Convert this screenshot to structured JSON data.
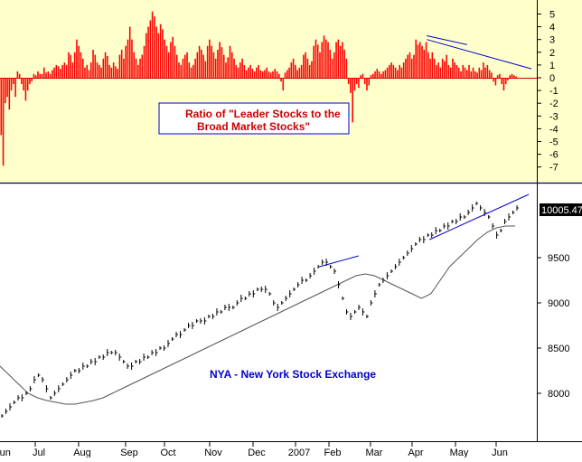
{
  "colors": {
    "top_panel_bg": "#ffffcc",
    "bottom_panel_bg": "#ffffff",
    "bars": "#ff0000",
    "trend_lines": "#0000cc",
    "price": "#000000",
    "moving_average": "#555555",
    "annotation_text": "#0000cc",
    "ratio_box_text": "#cc0000",
    "ratio_box_border": "#0000cc",
    "separator": "#000066",
    "last_value_bg": "#000000",
    "last_value_text": "#ffffff"
  },
  "chart_data": [
    {
      "type": "bar",
      "panel": "top",
      "annotation": "Ratio of  \"Leader Stocks to the Broad Market Stocks\"",
      "annotation_lines": [
        "Ratio of  \"Leader Stocks to the",
        "Broad Market Stocks\""
      ],
      "y_ticks": [
        5,
        4,
        3,
        2,
        1,
        0,
        -1,
        -2,
        -3,
        -4,
        -5,
        -6,
        -7
      ],
      "ylim": [
        -8,
        5.5
      ],
      "values": [
        -4.5,
        -6.9,
        -2.0,
        -1.5,
        -2.5,
        -1.0,
        -0.5,
        -1.5,
        0.5,
        0.3,
        -0.5,
        -1.0,
        -1.8,
        -1.0,
        -0.5,
        -0.3,
        0.3,
        0.2,
        0.5,
        0.3,
        0.3,
        0.8,
        0.4,
        0.5,
        0.3,
        0.6,
        0.8,
        1.0,
        0.9,
        0.7,
        1.0,
        1.2,
        1.0,
        2.0,
        1.8,
        1.2,
        2.0,
        3.0,
        2.5,
        2.0,
        1.5,
        0.8,
        1.0,
        0.6,
        1.2,
        2.2,
        1.8,
        1.2,
        1.0,
        0.8,
        1.5,
        2.0,
        1.7,
        1.0,
        0.8,
        1.2,
        0.9,
        0.7,
        1.8,
        2.2,
        1.5,
        2.5,
        3.0,
        4.0,
        3.0,
        2.0,
        1.5,
        1.0,
        1.5,
        1.8,
        2.5,
        3.5,
        4.0,
        4.5,
        5.2,
        4.8,
        4.0,
        3.5,
        4.2,
        3.8,
        3.0,
        2.5,
        2.0,
        2.8,
        3.2,
        2.5,
        1.8,
        1.2,
        1.0,
        1.5,
        1.8,
        2.0,
        1.2,
        0.8,
        1.0,
        1.5,
        2.0,
        2.5,
        2.2,
        1.8,
        1.3,
        2.5,
        3.0,
        2.5,
        2.0,
        1.5,
        2.2,
        2.8,
        2.4,
        1.8,
        1.2,
        1.6,
        2.5,
        2.0,
        1.5,
        1.0,
        0.8,
        1.2,
        1.5,
        1.0,
        0.6,
        0.8,
        1.0,
        0.7,
        0.5,
        0.8,
        1.0,
        0.6,
        0.5,
        0.6,
        0.8,
        0.5,
        0.4,
        0.5,
        0.7,
        0.5,
        0.3,
        -0.3,
        -1.0,
        0.4,
        0.6,
        0.8,
        1.2,
        1.5,
        1.0,
        0.6,
        0.8,
        1.0,
        1.8,
        2.0,
        1.5,
        1.0,
        1.3,
        2.5,
        3.0,
        2.6,
        2.0,
        2.8,
        3.3,
        3.0,
        2.8,
        2.2,
        1.5,
        2.0,
        2.8,
        3.0,
        2.5,
        2.8,
        2.2,
        1.5,
        -0.5,
        -1.2,
        -3.5,
        -1.0,
        -0.5,
        -0.8,
        0.2,
        0.3,
        -0.5,
        -1.0,
        -0.6,
        0.2,
        0.3,
        0.5,
        0.7,
        0.5,
        0.3,
        0.5,
        0.6,
        0.8,
        1.0,
        1.2,
        1.0,
        0.8,
        0.6,
        1.0,
        0.8,
        1.2,
        1.5,
        1.8,
        2.0,
        1.5,
        1.8,
        3.0,
        2.6,
        2.8,
        2.5,
        2.2,
        2.8,
        2.0,
        1.5,
        2.0,
        1.5,
        1.0,
        1.2,
        0.8,
        1.5,
        1.3,
        1.8,
        1.0,
        0.8,
        1.5,
        1.2,
        1.0,
        0.8,
        0.5,
        1.0,
        0.8,
        0.6,
        1.0,
        0.5,
        0.8,
        0.5,
        0.4,
        0.8,
        0.6,
        1.2,
        0.8,
        1.0,
        0.6,
        0.4,
        -0.3,
        -0.6,
        0.2,
        0.3,
        -0.5,
        -1.0,
        -0.5,
        -0.2,
        0.2,
        0.3,
        0.2,
        0.1
      ],
      "trend_lines": [
        {
          "from": [
            0.795,
            3.3
          ],
          "to": [
            0.87,
            2.6
          ]
        },
        {
          "from": [
            0.795,
            3.0
          ],
          "to": [
            0.99,
            0.7
          ]
        }
      ]
    },
    {
      "type": "line",
      "panel": "bottom",
      "title": "NYA - New York Stock Exchange",
      "x_tick_labels": [
        "Jun",
        "Jul",
        "Aug",
        "Sep",
        "Oct",
        "Nov",
        "Dec",
        "2007",
        "Feb",
        "Mar",
        "Apr",
        "May",
        "Jun"
      ],
      "y_ticks": [
        8000,
        8500,
        9000,
        9500
      ],
      "ylim": [
        7650,
        10300
      ],
      "last_value": "10005.47",
      "price_series": [
        7750,
        7800,
        7850,
        7900,
        7950,
        7950,
        8000,
        8050,
        8150,
        8200,
        8150,
        8050,
        7950,
        8000,
        8050,
        8100,
        8150,
        8200,
        8250,
        8250,
        8300,
        8300,
        8350,
        8350,
        8400,
        8400,
        8450,
        8450,
        8450,
        8400,
        8350,
        8300,
        8300,
        8350,
        8350,
        8400,
        8400,
        8450,
        8450,
        8500,
        8500,
        8550,
        8600,
        8650,
        8650,
        8700,
        8750,
        8750,
        8800,
        8800,
        8800,
        8850,
        8850,
        8900,
        8900,
        8950,
        8950,
        8950,
        9000,
        9050,
        9050,
        9100,
        9100,
        9150,
        9150,
        9150,
        9100,
        9000,
        8950,
        9000,
        9050,
        9100,
        9150,
        9200,
        9250,
        9250,
        9300,
        9350,
        9400,
        9450,
        9450,
        9400,
        9350,
        9200,
        9050,
        8900,
        8850,
        8900,
        8950,
        8900,
        8850,
        9000,
        9100,
        9200,
        9250,
        9300,
        9350,
        9400,
        9450,
        9500,
        9550,
        9600,
        9650,
        9700,
        9700,
        9750,
        9750,
        9800,
        9800,
        9850,
        9850,
        9900,
        9900,
        9950,
        9950,
        10000,
        10050,
        10100,
        10050,
        10000,
        9950,
        9850,
        9750,
        9800,
        9900,
        9950,
        10000,
        10050
      ],
      "ma_series": [
        8300,
        8200,
        8100,
        8000,
        7950,
        7920,
        7900,
        7880,
        7880,
        7900,
        7920,
        7950,
        8000,
        8050,
        8100,
        8150,
        8200,
        8250,
        8300,
        8350,
        8400,
        8450,
        8500,
        8550,
        8600,
        8650,
        8700,
        8750,
        8800,
        8850,
        8900,
        8950,
        9000,
        9050,
        9100,
        9150,
        9200,
        9250,
        9300,
        9320,
        9300,
        9250,
        9200,
        9150,
        9100,
        9050,
        9100,
        9250,
        9400,
        9500,
        9600,
        9700,
        9780,
        9830,
        9850,
        9850
      ],
      "trend_lines": [
        {
          "from": [
            0.595,
            9400
          ],
          "to": [
            0.668,
            9520
          ]
        },
        {
          "from": [
            0.8,
            9700
          ],
          "to": [
            0.985,
            10200
          ]
        }
      ]
    }
  ]
}
